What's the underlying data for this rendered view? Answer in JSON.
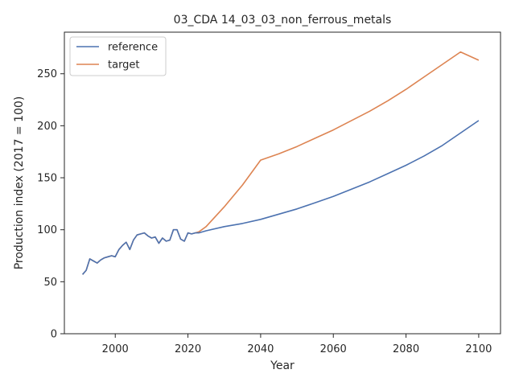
{
  "chart_data": {
    "type": "line",
    "title": "03_CDA 14_03_03_non_ferrous_metals",
    "xlabel": "Year",
    "ylabel": "Production index (2017 = 100)",
    "xlim": [
      1986,
      2106
    ],
    "ylim": [
      0,
      290
    ],
    "xticks": [
      2000,
      2020,
      2040,
      2060,
      2080,
      2100
    ],
    "yticks": [
      0,
      50,
      100,
      150,
      200,
      250
    ],
    "grid": false,
    "legend_position": "top-left",
    "series": [
      {
        "name": "reference",
        "color": "#4c72b0",
        "x": [
          1991,
          1992,
          1993,
          1994,
          1995,
          1996,
          1997,
          1998,
          1999,
          2000,
          2001,
          2002,
          2003,
          2004,
          2005,
          2006,
          2007,
          2008,
          2009,
          2010,
          2011,
          2012,
          2013,
          2014,
          2015,
          2016,
          2017,
          2018,
          2019,
          2020,
          2021,
          2022,
          2023,
          2025,
          2030,
          2035,
          2040,
          2045,
          2050,
          2055,
          2060,
          2065,
          2070,
          2075,
          2080,
          2085,
          2090,
          2095,
          2100
        ],
        "y": [
          57,
          61,
          72,
          70,
          68,
          71,
          73,
          74,
          75,
          74,
          81,
          85,
          88,
          81,
          90,
          95,
          96,
          97,
          94,
          92,
          93,
          87,
          92,
          89,
          90,
          100,
          100,
          91,
          89,
          97,
          96,
          97,
          97,
          99,
          103,
          106,
          110,
          115,
          120,
          126,
          132,
          139,
          146,
          154,
          162,
          171,
          181,
          193,
          205
        ]
      },
      {
        "name": "target",
        "color": "#dd8452",
        "x": [
          1991,
          1992,
          1993,
          1994,
          1995,
          1996,
          1997,
          1998,
          1999,
          2000,
          2001,
          2002,
          2003,
          2004,
          2005,
          2006,
          2007,
          2008,
          2009,
          2010,
          2011,
          2012,
          2013,
          2014,
          2015,
          2016,
          2017,
          2018,
          2019,
          2020,
          2021,
          2022,
          2023,
          2025,
          2030,
          2035,
          2040,
          2045,
          2050,
          2055,
          2060,
          2065,
          2070,
          2075,
          2080,
          2085,
          2090,
          2095,
          2100
        ],
        "y": [
          57,
          61,
          72,
          70,
          68,
          71,
          73,
          74,
          75,
          74,
          81,
          85,
          88,
          81,
          90,
          95,
          96,
          97,
          94,
          92,
          93,
          87,
          92,
          89,
          90,
          100,
          100,
          91,
          89,
          97,
          96,
          97,
          98,
          103,
          122,
          143,
          167,
          173,
          180,
          188,
          196,
          205,
          214,
          224,
          235,
          247,
          259,
          271,
          263
        ]
      }
    ]
  }
}
